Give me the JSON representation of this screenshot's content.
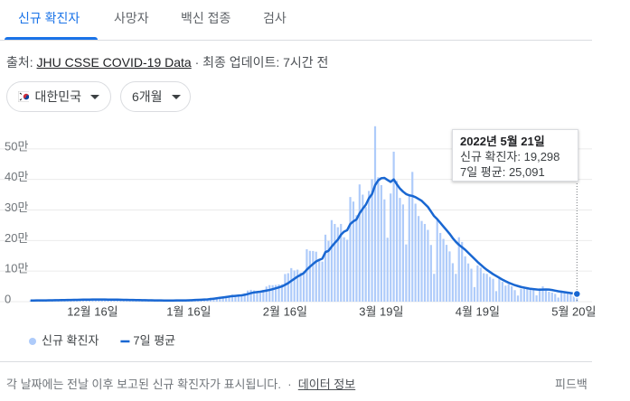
{
  "tabs": [
    "신규 확진자",
    "사망자",
    "백신 접종",
    "검사"
  ],
  "source": {
    "label": "출처:",
    "link": "JHU CSSE COVID-19 Data",
    "updated": "· 최종 업데이트: 7시간 전"
  },
  "filters": [
    "대한민국",
    "6개월"
  ],
  "chart_data": {
    "type": "combo",
    "categories": [
      null,
      null,
      null,
      null,
      null,
      null,
      null,
      null,
      null,
      null,
      null,
      null,
      null,
      null,
      null,
      null,
      null,
      null,
      null,
      null,
      "12월 16일",
      null,
      null,
      null,
      null,
      null,
      null,
      null,
      null,
      null,
      null,
      null,
      null,
      null,
      null,
      null,
      null,
      null,
      null,
      null,
      null,
      null,
      null,
      null,
      null,
      null,
      null,
      null,
      null,
      null,
      null,
      "1월 16일",
      null,
      null,
      null,
      null,
      null,
      null,
      null,
      null,
      null,
      null,
      null,
      null,
      null,
      null,
      null,
      null,
      null,
      null,
      null,
      null,
      null,
      null,
      null,
      null,
      null,
      null,
      null,
      null,
      null,
      null,
      "2월 16일",
      null,
      null,
      null,
      null,
      null,
      null,
      null,
      null,
      null,
      null,
      null,
      null,
      null,
      null,
      null,
      null,
      null,
      null,
      null,
      null,
      null,
      null,
      null,
      null,
      null,
      null,
      null,
      null,
      null,
      null,
      "3월 19일",
      null,
      null,
      null,
      null,
      null,
      null,
      null,
      null,
      null,
      null,
      null,
      null,
      null,
      null,
      null,
      null,
      null,
      null,
      null,
      null,
      null,
      null,
      null,
      null,
      null,
      null,
      null,
      null,
      null,
      null,
      "4월 19일",
      null,
      null,
      null,
      null,
      null,
      null,
      null,
      null,
      null,
      null,
      null,
      null,
      null,
      null,
      null,
      null,
      null,
      null,
      null,
      null,
      null,
      null,
      null,
      null,
      null,
      null,
      null,
      null,
      null,
      null,
      "5월 20일",
      null
    ],
    "series": [
      {
        "name": "신규 확진자",
        "type": "bar",
        "color": "#aecbfa",
        "values": [
          4000,
          4100,
          3900,
          3300,
          5100,
          5200,
          5300,
          4900,
          5300,
          5100,
          4300,
          7100,
          7000,
          7000,
          7000,
          6900,
          6100,
          5800,
          7800,
          7700,
          7400,
          7300,
          6200,
          5300,
          5500,
          7400,
          7400,
          7300,
          6200,
          5800,
          4800,
          5400,
          5200,
          5000,
          5000,
          4900,
          4400,
          3100,
          3000,
          4100,
          4400,
          4100,
          3500,
          3400,
          3000,
          4300,
          4500,
          4200,
          4500,
          3900,
          3800,
          5600,
          6600,
          7500,
          8000,
          7600,
          7600,
          7500,
          13000,
          13000,
          14500,
          16100,
          17500,
          18000,
          18300,
          22900,
          20300,
          20200,
          22900,
          27400,
          36300,
          38700,
          36700,
          32200,
          28600,
          38700,
          49500,
          54100,
          53900,
          54600,
          56400,
          57100,
          90400,
          93100,
          109800,
          102200,
          104800,
          95400,
          99500,
          171400,
          166200,
          165800,
          163500,
          139600,
          131000,
          219200,
          198800,
          266800,
          254300,
          243600,
          254300,
          210700,
          202700,
          342400,
          327500,
          282900,
          383600,
          350200,
          309700,
          362300,
          400700,
          574000,
          407000,
          381400,
          334700,
          209200,
          353900,
          490800,
          395500,
          339500,
          318100,
          187200,
          347500,
          424600,
          320700,
          280200,
          264100,
          254300,
          234900,
          185500,
          90900,
          266100,
          224800,
          205300,
          185900,
          164400,
          125800,
          90900,
          210700,
          195300,
          148400,
          125000,
          107900,
          47700,
          118500,
          111300,
          93000,
          90800,
          81000,
          74900,
          34400,
          76700,
          64700,
          52400,
          57400,
          50400,
          37700,
          20000,
          42200,
          49000,
          42300,
          39600,
          40000,
          20600,
          43900,
          49900,
          35900,
          32400,
          29600,
          25400,
          13300,
          35900,
          32300,
          29500,
          27800,
          25100,
          19298
        ]
      },
      {
        "name": "7일 평균",
        "type": "line",
        "color": "#1967d2",
        "values": [
          3700,
          3800,
          3900,
          3900,
          4000,
          4200,
          4400,
          4600,
          4800,
          4900,
          5000,
          5300,
          5500,
          5700,
          5900,
          6100,
          6300,
          6500,
          6700,
          6800,
          6900,
          7000,
          7000,
          7000,
          6900,
          6800,
          6700,
          6600,
          6500,
          6300,
          6100,
          5900,
          5700,
          5500,
          5300,
          5100,
          4900,
          4700,
          4500,
          4300,
          4100,
          4000,
          3900,
          3800,
          3700,
          3700,
          3800,
          3900,
          4000,
          4100,
          4200,
          4500,
          4900,
          5400,
          5900,
          6400,
          6900,
          7400,
          8500,
          9700,
          11000,
          12400,
          13800,
          15200,
          16700,
          18100,
          19000,
          19900,
          20800,
          22400,
          25000,
          27800,
          30100,
          31500,
          32600,
          34400,
          36300,
          38200,
          40900,
          43700,
          46800,
          50000,
          55000,
          60600,
          67900,
          74900,
          82000,
          87500,
          93200,
          104700,
          114400,
          123100,
          131600,
          136600,
          140800,
          162000,
          166500,
          180000,
          192000,
          203000,
          219000,
          229000,
          234000,
          254000,
          263000,
          269000,
          289000,
          304000,
          317000,
          338000,
          352000,
          381000,
          397000,
          404000,
          405000,
          398000,
          392000,
          400000,
          384000,
          370000,
          360000,
          352000,
          348000,
          346000,
          342000,
          336000,
          330000,
          320000,
          310000,
          295000,
          280000,
          270000,
          258000,
          246000,
          234000,
          222000,
          208000,
          196000,
          186000,
          178000,
          170000,
          160000,
          150000,
          140000,
          130000,
          121000,
          112000,
          104000,
          97000,
          90000,
          84000,
          78000,
          72000,
          67000,
          62000,
          58000,
          54000,
          51000,
          48000,
          46000,
          44000,
          42000,
          41000,
          40000,
          39000,
          39500,
          40000,
          39500,
          38000,
          36000,
          34000,
          32500,
          31000,
          29500,
          28000,
          26500,
          25091
        ]
      }
    ],
    "ylim": [
      0,
      600000
    ],
    "yticks": [
      0,
      {
        "value": 100000,
        "label": "10만"
      },
      {
        "value": 200000,
        "label": "20만"
      },
      {
        "value": 300000,
        "label": "30만"
      },
      {
        "value": 400000,
        "label": "40만"
      },
      {
        "value": 500000,
        "label": "50만"
      }
    ],
    "grid": true,
    "tooltip": {
      "title": "2022년 5월 21일",
      "rows": [
        "신규 확진자: 19,298",
        "7일 평균: 25,091"
      ]
    }
  },
  "footer": {
    "note": "각 날짜에는 전날 이후 보고된 신규 확진자가 표시됩니다.",
    "separator": "·",
    "link": "데이터 정보",
    "feedback": "피드백"
  }
}
